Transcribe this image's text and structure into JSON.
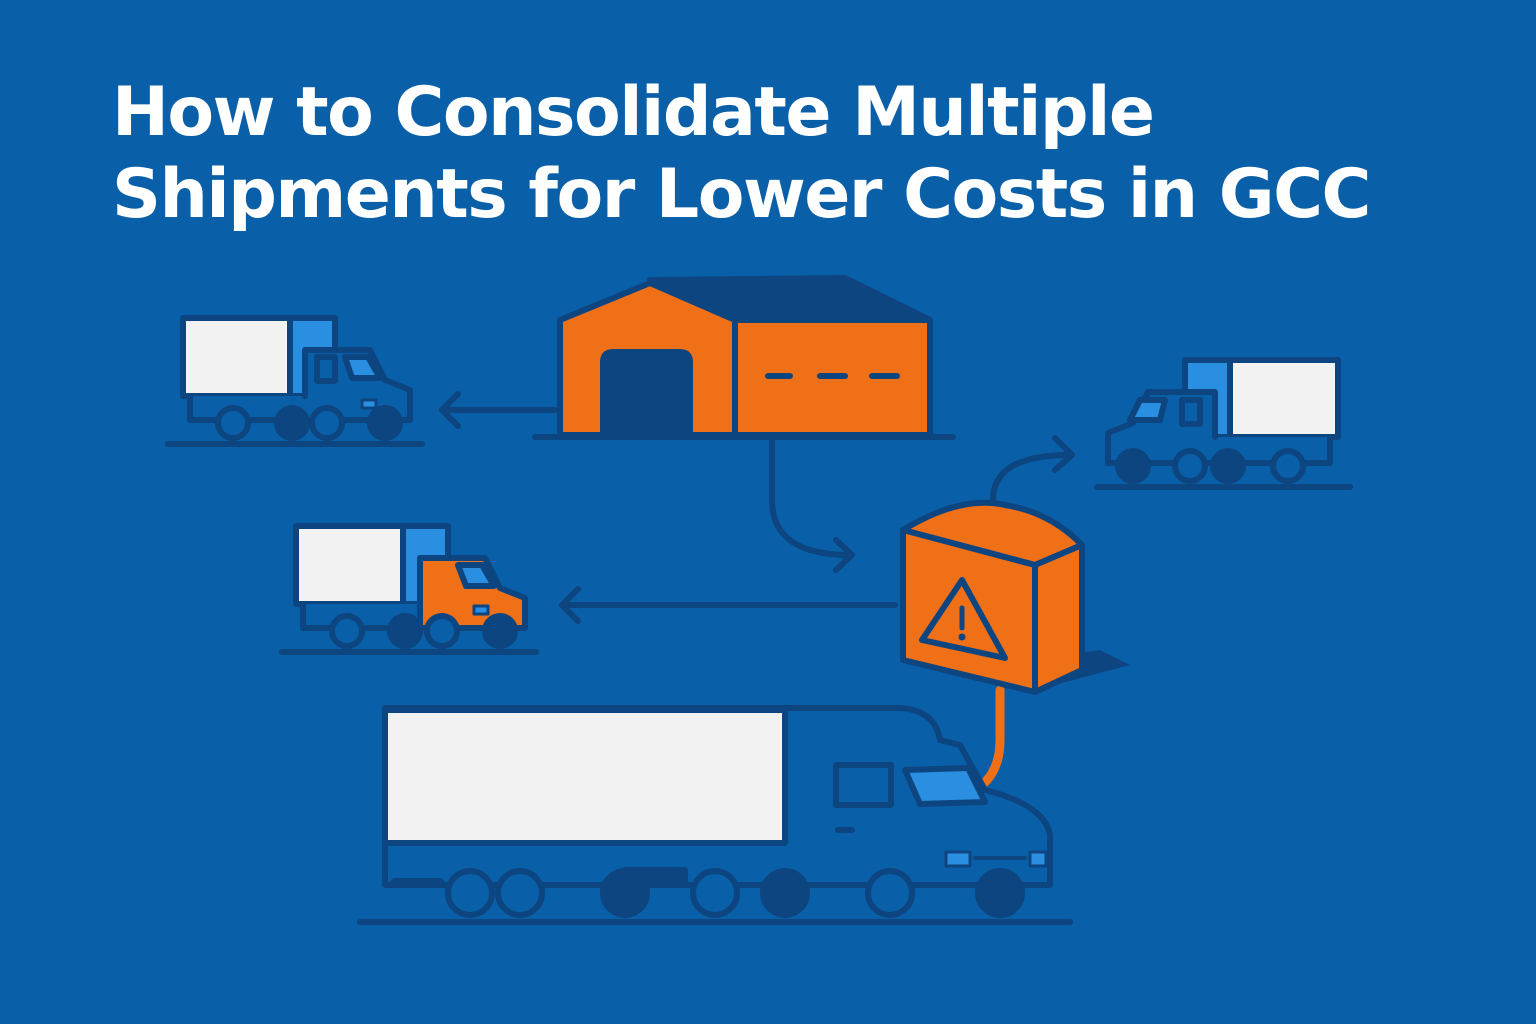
{
  "title": {
    "line1": "How to Consolidate Multiple",
    "line2": "Shipments for Lower Costs in GCC"
  },
  "colors": {
    "background": "#0A60A8",
    "outline": "#0D4580",
    "accent": "#F07018",
    "cargo": "#F2F2F2",
    "highlight": "#2A8FE0"
  },
  "icons": [
    "warehouse-icon",
    "delivery-truck-icon",
    "package-box-icon",
    "warning-icon",
    "semi-truck-icon",
    "arrow-icon"
  ]
}
